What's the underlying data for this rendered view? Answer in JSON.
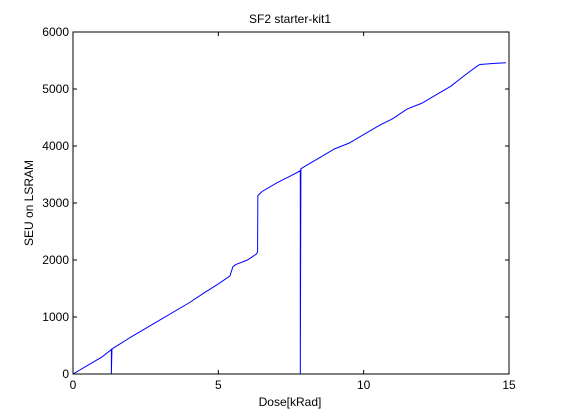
{
  "chart_data": {
    "type": "line",
    "title": "SF2 starter-kit1",
    "xlabel": "Dose[kRad]",
    "ylabel": "SEU on LSRAM",
    "xlim": [
      0,
      15
    ],
    "ylim": [
      0,
      6000
    ],
    "xticks": [
      0,
      5,
      10,
      15
    ],
    "xtick_labels": [
      "0",
      "5",
      "10",
      "15"
    ],
    "yticks": [
      0,
      1000,
      2000,
      3000,
      4000,
      5000,
      6000
    ],
    "ytick_labels": [
      "0",
      "1000",
      "2000",
      "3000",
      "4000",
      "5000",
      "6000"
    ],
    "grid": false,
    "series": [
      {
        "color": "#0000ff",
        "x": [
          0,
          0.5,
          1.0,
          1.3,
          1.32,
          1.32,
          1.34,
          2.0,
          3.0,
          4.0,
          4.5,
          5.0,
          5.4,
          5.5,
          5.6,
          6.0,
          6.3,
          6.35,
          6.36,
          6.5,
          7.0,
          7.5,
          7.8,
          7.82,
          7.82,
          7.84,
          8.0,
          8.5,
          9.0,
          9.5,
          10.0,
          10.5,
          11.0,
          11.5,
          12.0,
          12.5,
          13.0,
          13.5,
          13.9,
          14.0,
          14.5,
          14.9
        ],
        "y": [
          0,
          150,
          300,
          420,
          430,
          0,
          440,
          650,
          950,
          1250,
          1420,
          1580,
          1720,
          1880,
          1920,
          2000,
          2100,
          2140,
          3130,
          3200,
          3350,
          3480,
          3560,
          3580,
          0,
          3600,
          3650,
          3800,
          3950,
          4050,
          4200,
          4350,
          4480,
          4650,
          4750,
          4900,
          5050,
          5250,
          5400,
          5430,
          5450,
          5460
        ]
      }
    ]
  }
}
